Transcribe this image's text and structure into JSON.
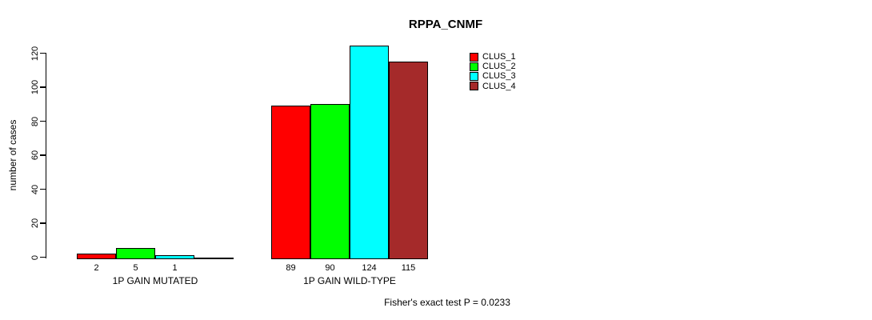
{
  "title": "RPPA_CNMF",
  "y_axis": {
    "label": "number of cases",
    "tick_labels": [
      "0",
      "20",
      "40",
      "60",
      "80",
      "100",
      "120"
    ]
  },
  "legend": {
    "items": [
      {
        "label": "CLUS_1",
        "color": "#FF0000"
      },
      {
        "label": "CLUS_2",
        "color": "#00FF00"
      },
      {
        "label": "CLUS_3",
        "color": "#00FFFF"
      },
      {
        "label": "CLUS_4",
        "color": "#A52A2A"
      }
    ]
  },
  "footer": "Fisher's exact test P = 0.0233",
  "chart_data": {
    "type": "bar",
    "title": "RPPA_CNMF",
    "xlabel": "",
    "ylabel": "number of cases",
    "categories": [
      "1P GAIN MUTATED",
      "1P GAIN WILD-TYPE"
    ],
    "series": [
      {
        "name": "CLUS_1",
        "color": "#FF0000",
        "values": [
          2,
          89
        ]
      },
      {
        "name": "CLUS_2",
        "color": "#00FF00",
        "values": [
          5,
          90
        ]
      },
      {
        "name": "CLUS_3",
        "color": "#00FFFF",
        "values": [
          1,
          124
        ]
      },
      {
        "name": "CLUS_4",
        "color": "#A52A2A",
        "values": [
          0,
          115
        ]
      }
    ],
    "ylim": [
      0,
      120
    ],
    "yticks": [
      0,
      20,
      40,
      60,
      80,
      100,
      120
    ],
    "grid": false,
    "legend_position": "top-right",
    "bar_value_labels_shown": true,
    "zero_value_labels_hidden": true,
    "annotation": "Fisher's exact test P = 0.0233"
  }
}
